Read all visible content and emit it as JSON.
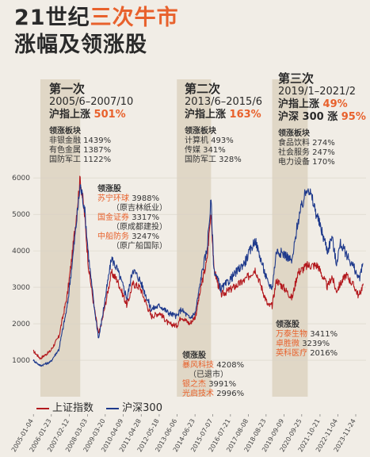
{
  "header": {
    "line1_plain": "21世纪",
    "line1_highlight": "三次牛市",
    "line2": "涨幅及领涨股"
  },
  "periods": [
    {
      "head": "第一次",
      "range": "2005/6–2007/10",
      "gain_label": "沪指上涨",
      "gain_pct": "501%",
      "gain2_label": "",
      "gain2_pct": "",
      "sector_title": "领涨板块",
      "sectors": [
        "非银金融 1439%",
        "有色金属 1387%",
        "国防军工 1122%"
      ]
    },
    {
      "head": "第二次",
      "range": "2013/6–2015/6",
      "gain_label": "沪指上涨",
      "gain_pct": "163%",
      "gain2_label": "",
      "gain2_pct": "",
      "sector_title": "领涨板块",
      "sectors": [
        "计算机 493%",
        "传媒 341%",
        "国防军工 328%"
      ]
    },
    {
      "head": "第三次",
      "range": "2019/1–2021/2",
      "gain_label": "沪指上涨",
      "gain_pct": "49%",
      "gain2_label": "沪深 300 涨",
      "gain2_pct": "95%",
      "sector_title": "领涨板块",
      "sectors": [
        "食品饮料 274%",
        "社会服务 247%",
        "电力设备 170%"
      ]
    }
  ],
  "leaders": [
    {
      "title": "领涨股",
      "rows": [
        {
          "name": "苏宁环球",
          "value": "3988%"
        },
        {
          "name": "",
          "value": "（原吉林纸业）"
        },
        {
          "name": "国金证券",
          "value": "3317%"
        },
        {
          "name": "",
          "value": "（原成都建投）"
        },
        {
          "name": "中船防务",
          "value": "3247%"
        },
        {
          "name": "",
          "value": "（原广船国际）"
        }
      ]
    },
    {
      "title": "领涨股",
      "rows": [
        {
          "name": "暴风科技",
          "value": "4208%"
        },
        {
          "name": "",
          "value": "（已退市）"
        },
        {
          "name": "银之杰",
          "value": "3991%"
        },
        {
          "name": "光启技术",
          "value": "2996%"
        }
      ]
    },
    {
      "title": "领涨股",
      "rows": [
        {
          "name": "万泰生物",
          "value": "3411%"
        },
        {
          "name": "卓胜微",
          "value": "3239%"
        },
        {
          "name": "英科医疗",
          "value": "2016%"
        }
      ]
    }
  ],
  "legend": {
    "sh_label": "上证指数",
    "hs_label": "沪深300"
  },
  "colors": {
    "accent": "#e8612c",
    "sh_line": "#b3191e",
    "hs_line": "#1f3a8c",
    "shade": "#d9cdb8"
  },
  "chart_data": {
    "type": "line",
    "title": "",
    "xlabel": "",
    "ylabel": "",
    "ylim": [
      0,
      6200
    ],
    "yticks": [
      1000,
      2000,
      3000,
      4000,
      5000,
      6000
    ],
    "xtick_labels": [
      "2005-01-04",
      "2006-01-23",
      "2007-02-12",
      "2008-03-03",
      "2009-03-20",
      "2010-04-09",
      "2011-04-28",
      "2012-05-18",
      "2013-06-06",
      "2014-06-23",
      "2015-07-07",
      "2016-07-21",
      "2017-08-08",
      "2018-08-23",
      "2019-09-09",
      "2020-09-25",
      "2021-10-21",
      "2022-11-04",
      "2023-11-24"
    ],
    "shaded_periods": [
      [
        "2005-06",
        "2007-10"
      ],
      [
        "2013-06",
        "2015-06"
      ],
      [
        "2019-01",
        "2021-02"
      ]
    ],
    "series": [
      {
        "name": "上证指数",
        "points": [
          [
            "2005-01",
            1250
          ],
          [
            "2005-06",
            1050
          ],
          [
            "2006-01",
            1250
          ],
          [
            "2006-07",
            1650
          ],
          [
            "2007-01",
            2800
          ],
          [
            "2007-05",
            4100
          ],
          [
            "2007-10",
            6000
          ],
          [
            "2008-01",
            5000
          ],
          [
            "2008-04",
            3500
          ],
          [
            "2008-08",
            2400
          ],
          [
            "2008-11",
            1700
          ],
          [
            "2009-02",
            2200
          ],
          [
            "2009-08",
            3400
          ],
          [
            "2009-12",
            3200
          ],
          [
            "2010-07",
            2500
          ],
          [
            "2010-11",
            3100
          ],
          [
            "2011-04",
            3000
          ],
          [
            "2011-12",
            2200
          ],
          [
            "2012-06",
            2300
          ],
          [
            "2012-12",
            2000
          ],
          [
            "2013-06",
            1950
          ],
          [
            "2013-09",
            2200
          ],
          [
            "2014-03",
            2000
          ],
          [
            "2014-07",
            2200
          ],
          [
            "2014-12",
            3200
          ],
          [
            "2015-03",
            3700
          ],
          [
            "2015-06",
            5100
          ],
          [
            "2015-08",
            3500
          ],
          [
            "2016-01",
            2800
          ],
          [
            "2016-06",
            2900
          ],
          [
            "2017-06",
            3200
          ],
          [
            "2018-01",
            3500
          ],
          [
            "2018-10",
            2500
          ],
          [
            "2019-01",
            2500
          ],
          [
            "2019-04",
            3200
          ],
          [
            "2019-10",
            2950
          ],
          [
            "2020-03",
            2700
          ],
          [
            "2020-07",
            3400
          ],
          [
            "2021-02",
            3600
          ],
          [
            "2021-09",
            3600
          ],
          [
            "2022-04",
            3000
          ],
          [
            "2022-07",
            3300
          ],
          [
            "2022-10",
            2900
          ],
          [
            "2023-05",
            3350
          ],
          [
            "2023-11",
            3000
          ],
          [
            "2024-02",
            2750
          ],
          [
            "2024-05",
            3100
          ]
        ]
      },
      {
        "name": "沪深300",
        "points": [
          [
            "2005-01",
            1000
          ],
          [
            "2005-06",
            850
          ],
          [
            "2006-01",
            950
          ],
          [
            "2006-07",
            1300
          ],
          [
            "2007-01",
            2500
          ],
          [
            "2007-05",
            3900
          ],
          [
            "2007-10",
            5800
          ],
          [
            "2008-01",
            5200
          ],
          [
            "2008-04",
            3800
          ],
          [
            "2008-08",
            2400
          ],
          [
            "2008-11",
            1600
          ],
          [
            "2009-02",
            2300
          ],
          [
            "2009-08",
            3800
          ],
          [
            "2009-12",
            3500
          ],
          [
            "2010-07",
            2700
          ],
          [
            "2010-11",
            3500
          ],
          [
            "2011-04",
            3200
          ],
          [
            "2011-12",
            2400
          ],
          [
            "2012-06",
            2500
          ],
          [
            "2012-12",
            2300
          ],
          [
            "2013-06",
            2200
          ],
          [
            "2013-09",
            2400
          ],
          [
            "2014-03",
            2150
          ],
          [
            "2014-07",
            2300
          ],
          [
            "2014-12",
            3500
          ],
          [
            "2015-03",
            4000
          ],
          [
            "2015-06",
            5380
          ],
          [
            "2015-08",
            3500
          ],
          [
            "2016-01",
            2950
          ],
          [
            "2016-06",
            3150
          ],
          [
            "2017-06",
            3700
          ],
          [
            "2018-01",
            4300
          ],
          [
            "2018-10",
            3100
          ],
          [
            "2019-01",
            3000
          ],
          [
            "2019-04",
            4000
          ],
          [
            "2019-10",
            3900
          ],
          [
            "2020-03",
            3700
          ],
          [
            "2020-07",
            4800
          ],
          [
            "2021-02",
            5800
          ],
          [
            "2021-09",
            4900
          ],
          [
            "2022-04",
            4000
          ],
          [
            "2022-07",
            4400
          ],
          [
            "2022-10",
            3650
          ],
          [
            "2023-01",
            4200
          ],
          [
            "2023-11",
            3500
          ],
          [
            "2024-02",
            3200
          ],
          [
            "2024-05",
            3650
          ]
        ]
      }
    ]
  }
}
